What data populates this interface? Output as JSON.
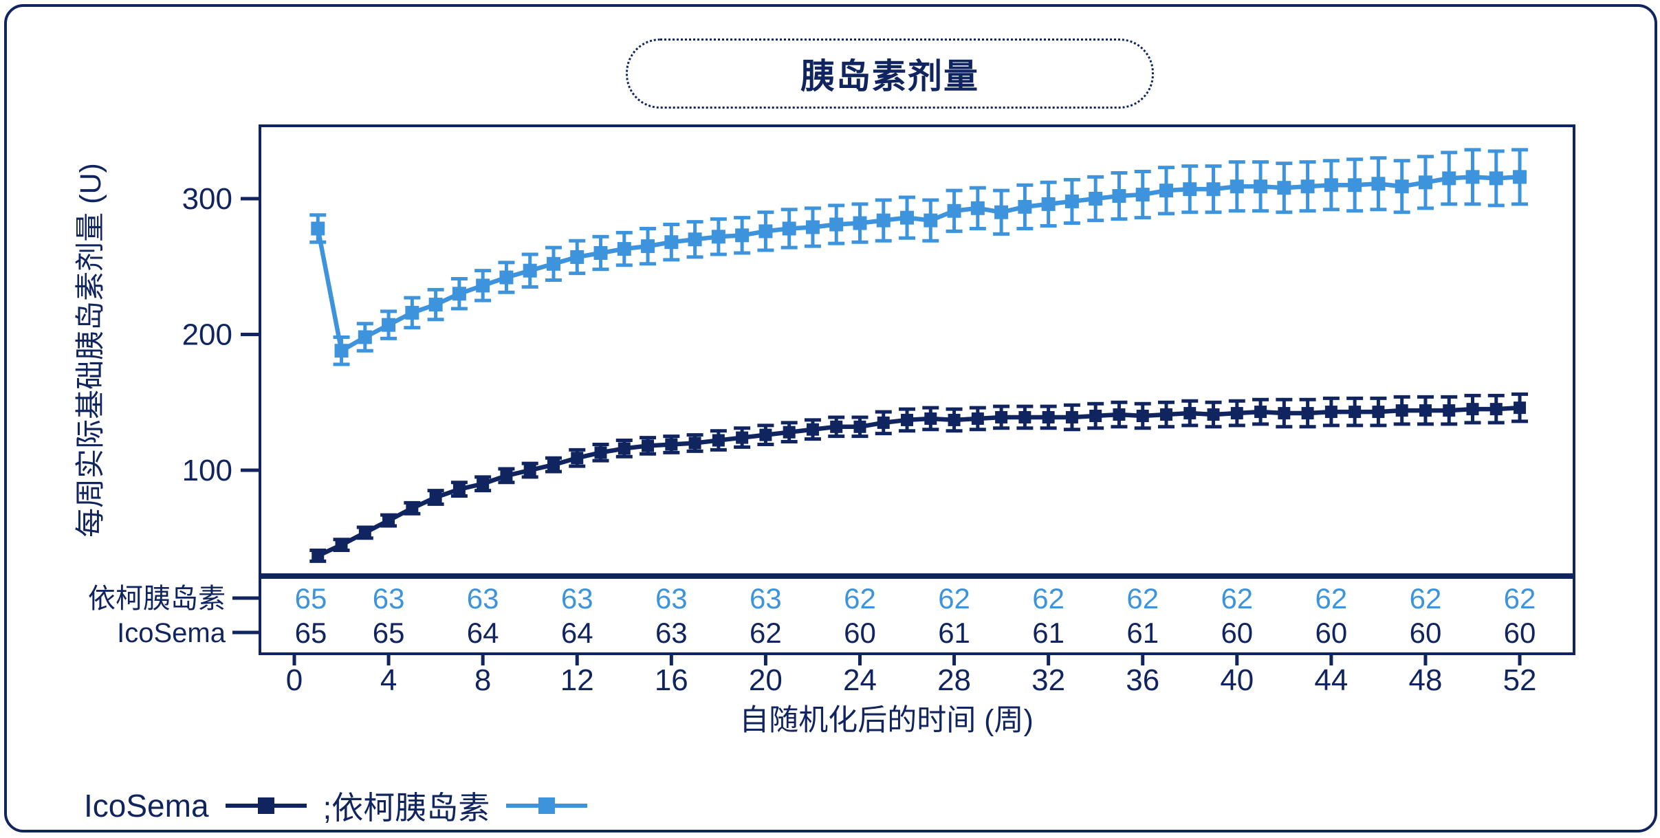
{
  "title": "胰岛素剂量",
  "colors": {
    "navy": "#10245F",
    "light_blue": "#3E94DC",
    "background": "#FFFFFF"
  },
  "chart_data": {
    "type": "line",
    "title": "胰岛素剂量",
    "xlabel": "自随机化后的时间 (周)",
    "ylabel": "每周实际基础胰岛素剂量 (U)",
    "x_ticks": [
      0,
      4,
      8,
      12,
      16,
      20,
      24,
      28,
      32,
      36,
      40,
      44,
      48,
      52
    ],
    "y_ticks": [
      100,
      200,
      300
    ],
    "xlim": [
      -1.5,
      54.5
    ],
    "ylim": [
      20,
      355
    ],
    "grid": false,
    "legend_position": "bottom-left",
    "weeks": [
      1,
      2,
      3,
      4,
      5,
      6,
      7,
      8,
      9,
      10,
      11,
      12,
      13,
      14,
      15,
      16,
      17,
      18,
      19,
      20,
      21,
      22,
      23,
      24,
      25,
      26,
      27,
      28,
      29,
      30,
      31,
      32,
      33,
      34,
      35,
      36,
      37,
      38,
      39,
      40,
      41,
      42,
      43,
      44,
      45,
      46,
      47,
      48,
      49,
      50,
      51,
      52
    ],
    "series": [
      {
        "name": "IcoSema",
        "color": "navy",
        "marker": "square",
        "values": [
          37,
          45,
          54,
          63,
          72,
          80,
          86,
          90,
          96,
          100,
          104,
          109,
          113,
          116,
          118,
          119,
          120,
          122,
          124,
          126,
          128,
          130,
          132,
          132,
          135,
          137,
          138,
          137,
          138,
          139,
          139,
          139,
          139,
          140,
          141,
          140,
          141,
          142,
          141,
          142,
          143,
          142,
          142,
          143,
          143,
          143,
          144,
          144,
          144,
          145,
          145,
          146
        ],
        "errors": [
          4,
          4,
          4,
          4,
          4,
          5,
          5,
          5,
          5,
          5,
          5,
          6,
          6,
          6,
          6,
          6,
          6,
          7,
          7,
          7,
          7,
          7,
          7,
          7,
          8,
          8,
          8,
          8,
          8,
          8,
          8,
          8,
          9,
          9,
          9,
          9,
          9,
          9,
          9,
          9,
          9,
          10,
          10,
          10,
          10,
          10,
          10,
          10,
          10,
          10,
          10,
          10
        ]
      },
      {
        "name": "依柯胰岛素",
        "color": "light_blue",
        "marker": "square",
        "values": [
          278,
          188,
          198,
          207,
          216,
          222,
          230,
          236,
          242,
          247,
          252,
          257,
          260,
          263,
          265,
          268,
          270,
          272,
          273,
          276,
          278,
          279,
          281,
          282,
          284,
          286,
          284,
          291,
          293,
          290,
          294,
          296,
          298,
          300,
          302,
          303,
          306,
          307,
          307,
          309,
          309,
          308,
          309,
          310,
          310,
          311,
          309,
          312,
          315,
          316,
          315,
          316
        ],
        "errors": [
          10,
          10,
          10,
          10,
          11,
          11,
          11,
          11,
          11,
          12,
          12,
          12,
          12,
          12,
          13,
          13,
          13,
          13,
          13,
          14,
          14,
          14,
          14,
          14,
          15,
          15,
          15,
          15,
          15,
          16,
          16,
          16,
          16,
          16,
          17,
          17,
          17,
          17,
          17,
          18,
          18,
          18,
          18,
          18,
          19,
          19,
          19,
          19,
          19,
          20,
          20,
          20
        ]
      }
    ]
  },
  "dose_table": {
    "column_weeks": [
      0.7,
      4,
      8,
      12,
      16,
      20,
      24,
      28,
      32,
      36,
      40,
      44,
      48,
      52
    ],
    "rows": [
      {
        "label": "依柯胰岛素",
        "color": "light_blue",
        "values": [
          65,
          63,
          63,
          63,
          63,
          63,
          62,
          62,
          62,
          62,
          62,
          62,
          62,
          62
        ]
      },
      {
        "label": "IcoSema",
        "color": "navy",
        "values": [
          65,
          65,
          64,
          64,
          63,
          62,
          60,
          61,
          61,
          61,
          60,
          60,
          60,
          60
        ]
      }
    ]
  },
  "legend": {
    "items": [
      {
        "label": "IcoSema",
        "color": "navy"
      },
      {
        "label": ";依柯胰岛素",
        "color": "light_blue"
      }
    ]
  }
}
